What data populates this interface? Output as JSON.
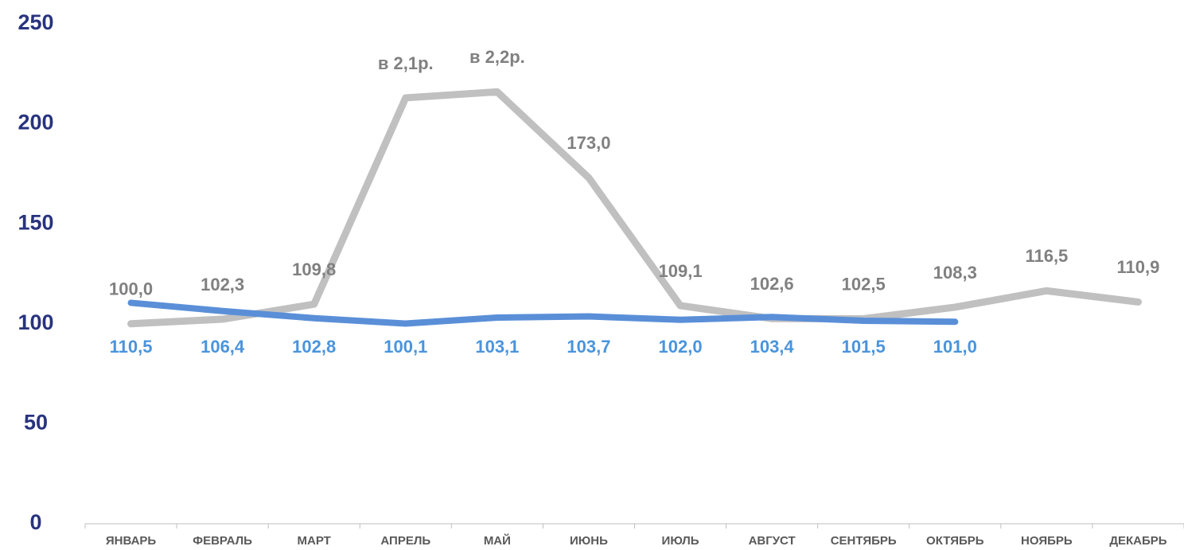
{
  "chart_data": {
    "type": "line",
    "categories": [
      "ЯНВАРЬ",
      "ФЕВРАЛЬ",
      "МАРТ",
      "АПРЕЛЬ",
      "МАЙ",
      "ИЮНЬ",
      "ИЮЛЬ",
      "АВГУСТ",
      "СЕНТЯБРЬ",
      "ОКТЯБРЬ",
      "НОЯБРЬ",
      "ДЕКАБРЬ"
    ],
    "series": [
      {
        "color": "#c0c0c0",
        "label_color": "#808080",
        "values": [
          100.0,
          102.3,
          109.8,
          213,
          216,
          173.0,
          109.1,
          102.6,
          102.5,
          108.3,
          116.5,
          110.9
        ],
        "value_labels": [
          "100,0",
          "102,3",
          "109,8",
          "в 2,1р.",
          "в 2,2р.",
          "173,0",
          "109,1",
          "102,6",
          "102,5",
          "108,3",
          "116,5",
          "110,9"
        ]
      },
      {
        "color": "#5a8fd8",
        "label_color": "#4a94dc",
        "values": [
          110.5,
          106.4,
          102.8,
          100.1,
          103.1,
          103.7,
          102.0,
          103.4,
          101.5,
          101.0,
          null,
          null
        ],
        "value_labels": [
          "110,5",
          "106,4",
          "102,8",
          "100,1",
          "103,1",
          "103,7",
          "102,0",
          "103,4",
          "101,5",
          "101,0",
          null,
          null
        ]
      }
    ],
    "ylim": [
      0,
      250
    ],
    "yticks": [
      0,
      50,
      100,
      150,
      200,
      250
    ],
    "grid": false
  }
}
